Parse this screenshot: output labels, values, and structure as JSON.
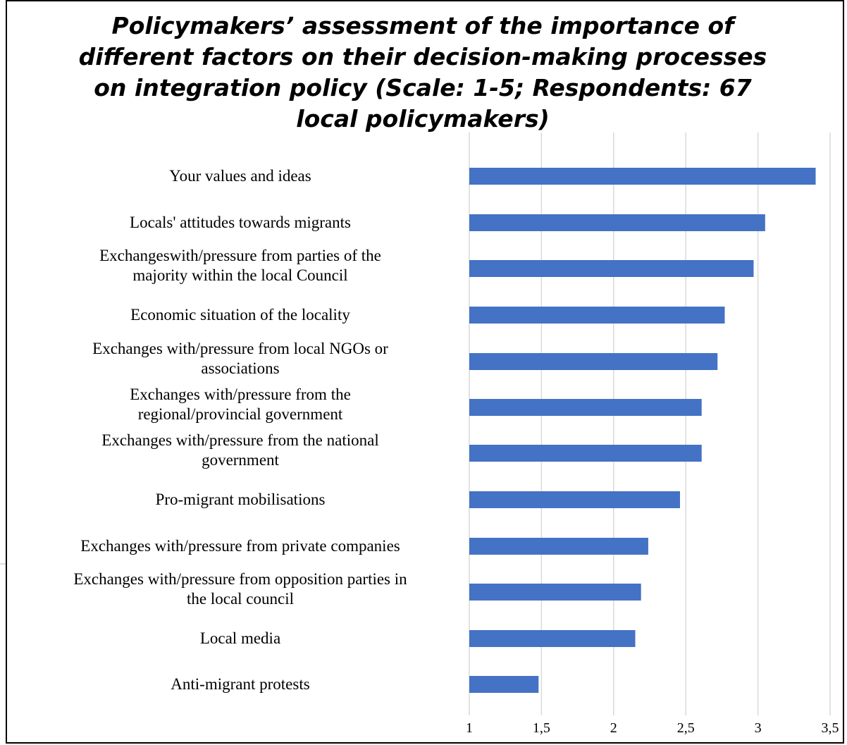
{
  "chart_data": {
    "type": "bar",
    "orientation": "horizontal",
    "title": "Policymakers’ assessment of the importance of different factors on their decision-making processes on integration policy (Scale: 1-5; Respondents: 67 local policymakers)",
    "categories": [
      [
        "Your values and ideas"
      ],
      [
        "Locals' attitudes towards migrants"
      ],
      [
        "Exchangeswith/pressure from parties of the",
        "majority within the local Council"
      ],
      [
        "Economic situation of the locality"
      ],
      [
        "Exchanges with/pressure from local NGOs or",
        "associations"
      ],
      [
        "Exchanges with/pressure from the",
        "regional/provincial government"
      ],
      [
        "Exchanges with/pressure from the national",
        "government"
      ],
      [
        "Pro-migrant mobilisations"
      ],
      [
        "Exchanges with/pressure from private companies"
      ],
      [
        "Exchanges with/pressure from opposition parties in",
        "the local council"
      ],
      [
        "Local media"
      ],
      [
        "Anti-migrant protests"
      ]
    ],
    "values": [
      3.4,
      3.05,
      2.97,
      2.77,
      2.72,
      2.61,
      2.61,
      2.46,
      2.24,
      2.19,
      2.15,
      1.48
    ],
    "xlim": [
      1,
      3.5
    ],
    "xticks": [
      "1",
      "1,5",
      "2",
      "2,5",
      "3",
      "3,5"
    ],
    "xtick_values": [
      1,
      1.5,
      2,
      2.5,
      3,
      3.5
    ],
    "bar_color": "#4472C4",
    "grid": "vertical",
    "xlabel": "",
    "ylabel": ""
  }
}
